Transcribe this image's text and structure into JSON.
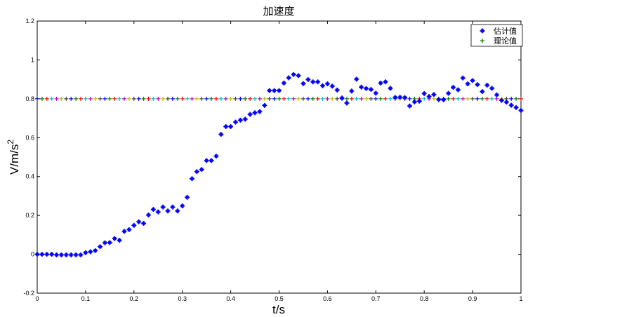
{
  "chart_data": {
    "type": "scatter",
    "title": "加速度",
    "xlabel": "t/s",
    "ylabel": "V/m/s",
    "ylabel_superscript": "2",
    "xlim": [
      0,
      1
    ],
    "ylim": [
      -0.2,
      1.2
    ],
    "xticks": [
      "0",
      "0.1",
      "0.2",
      "0.3",
      "0.4",
      "0.5",
      "0.6",
      "0.7",
      "0.8",
      "0.9",
      "1"
    ],
    "yticks": [
      "-0.2",
      "0",
      "0.2",
      "0.4",
      "0.6",
      "0.8",
      "1",
      "1.2"
    ],
    "grid": false,
    "legend_position": "top-right",
    "x_step": 0.01,
    "series": [
      {
        "name": "估计值",
        "marker": "*",
        "color": "#0000ff",
        "values": [
          0,
          0,
          0,
          0,
          -0.003,
          -0.003,
          -0.003,
          -0.003,
          -0.003,
          -0.003,
          0.008,
          0.013,
          0.019,
          0.039,
          0.059,
          0.06,
          0.081,
          0.072,
          0.118,
          0.127,
          0.149,
          0.167,
          0.159,
          0.202,
          0.231,
          0.218,
          0.243,
          0.223,
          0.243,
          0.223,
          0.249,
          0.293,
          0.389,
          0.425,
          0.436,
          0.482,
          0.482,
          0.505,
          0.617,
          0.657,
          0.657,
          0.68,
          0.69,
          0.695,
          0.72,
          0.728,
          0.734,
          0.766,
          0.842,
          0.842,
          0.842,
          0.881,
          0.908,
          0.925,
          0.919,
          0.878,
          0.899,
          0.887,
          0.887,
          0.867,
          0.877,
          0.865,
          0.845,
          0.804,
          0.778,
          0.84,
          0.901,
          0.86,
          0.853,
          0.848,
          0.829,
          0.881,
          0.887,
          0.854,
          0.807,
          0.808,
          0.806,
          0.763,
          0.784,
          0.788,
          0.827,
          0.812,
          0.822,
          0.796,
          0.795,
          0.828,
          0.859,
          0.846,
          0.907,
          0.877,
          0.894,
          0.873,
          0.837,
          0.87,
          0.854,
          0.82,
          0.792,
          0.783,
          0.767,
          0.755,
          0.74
        ]
      },
      {
        "name": "理论值",
        "marker": "+",
        "color": "#008000",
        "constant_value": 0.8,
        "marker_color_cycle": [
          "#0000ff",
          "#008000",
          "#ff0000",
          "#00bfbf",
          "#bf00bf",
          "#bfbf00",
          "#404040"
        ]
      }
    ]
  }
}
